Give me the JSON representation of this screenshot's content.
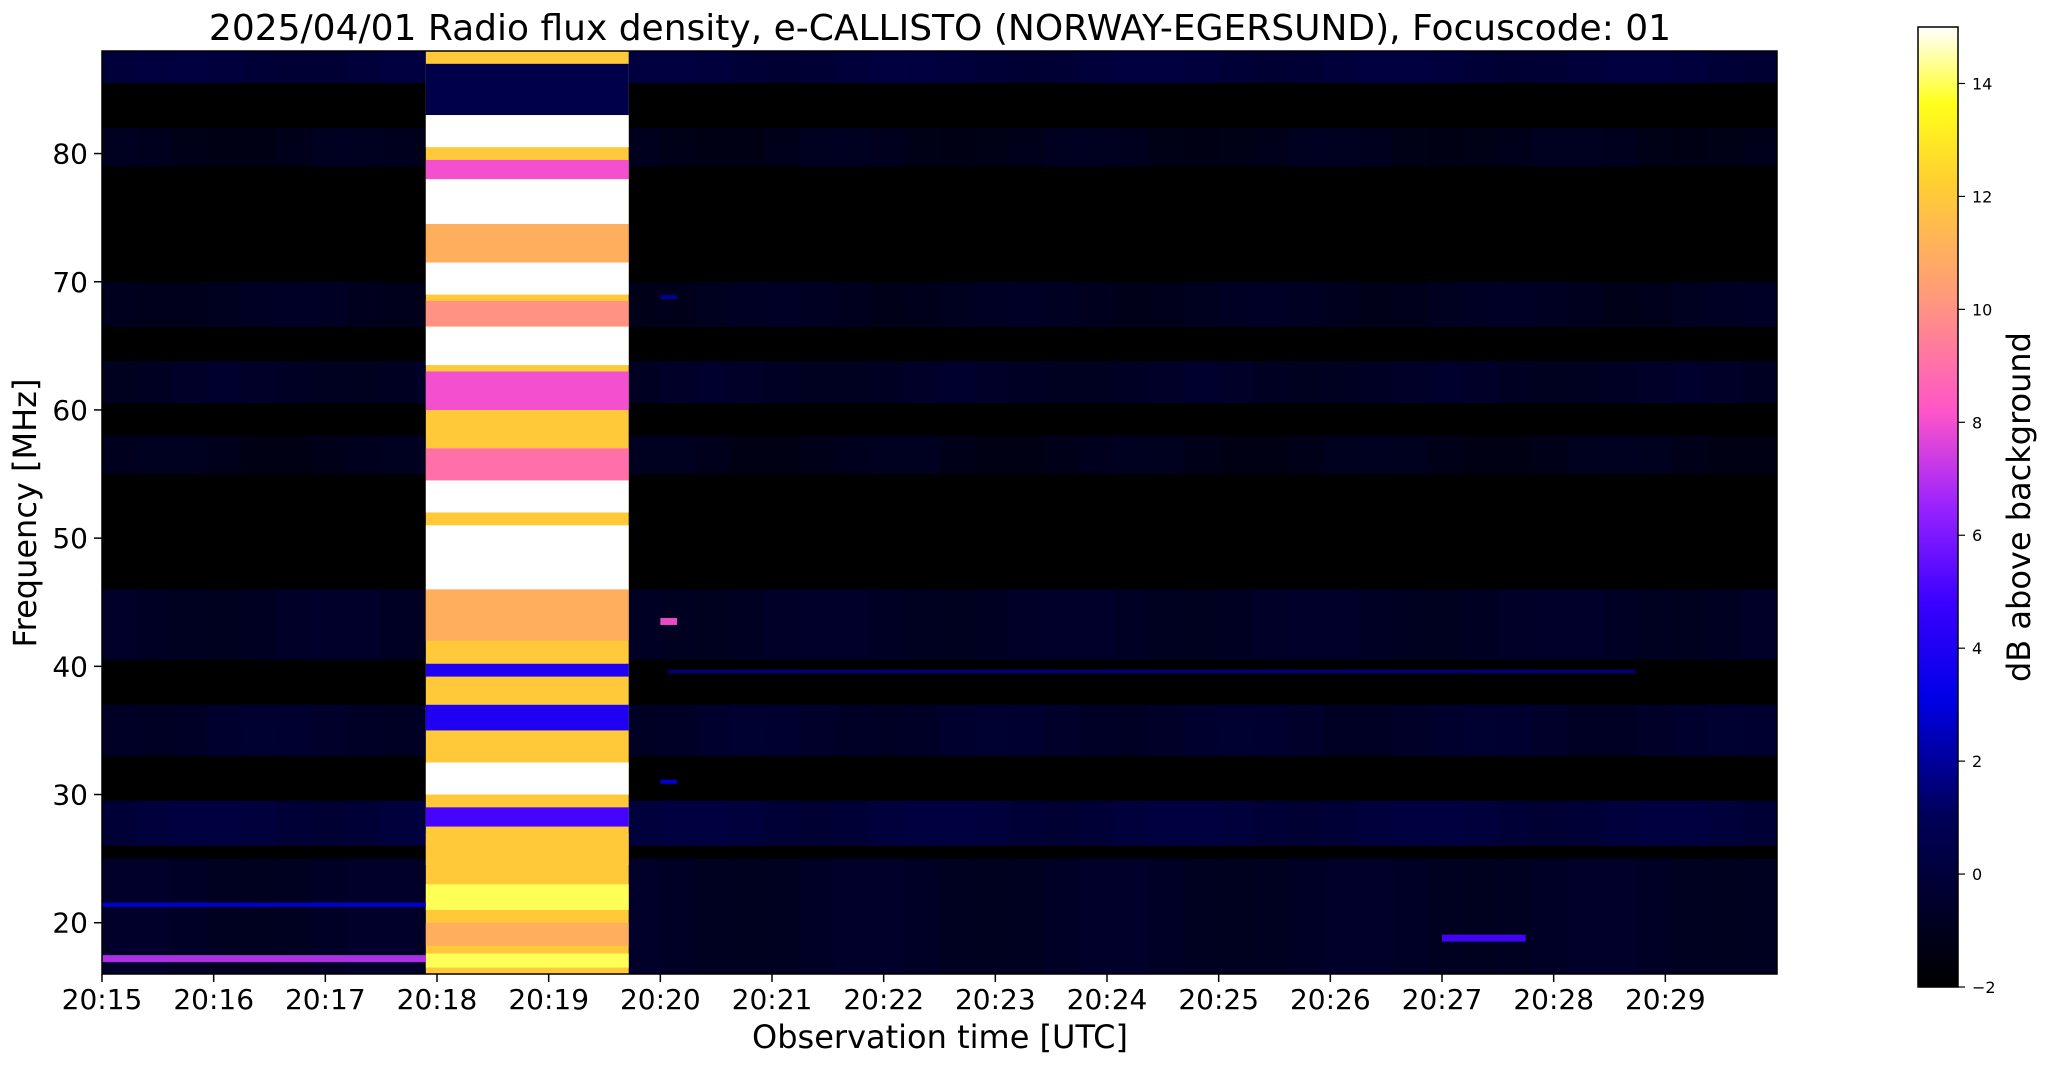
{
  "chart_data": {
    "type": "heatmap",
    "title": "2025/04/01  Radio flux density, e-CALLISTO (NORWAY-EGERSUND), Focuscode: 01",
    "xlabel": "Observation time [UTC]",
    "ylabel": "Frequency [MHz]",
    "colorbar_label": "dB above background",
    "colormap": "gnuplot2",
    "x_ticks": [
      "20:15",
      "20:16",
      "20:17",
      "20:18",
      "20:19",
      "20:20",
      "20:21",
      "20:22",
      "20:23",
      "20:24",
      "20:25",
      "20:26",
      "20:27",
      "20:28",
      "20:29"
    ],
    "xlim_minutes": [
      0,
      15.0
    ],
    "y_ticks": [
      20,
      30,
      40,
      50,
      60,
      70,
      80
    ],
    "ylim": [
      16,
      88
    ],
    "colorbar_ticks": [
      -2,
      0,
      2,
      4,
      6,
      8,
      10,
      12,
      14
    ],
    "colorbar_range": [
      -2,
      15
    ],
    "background_level_db": -1.6,
    "events": [
      {
        "label": "broadband burst",
        "t_start": "20:17:54",
        "t_end": "20:19:43",
        "f_min": 16,
        "f_max": 88,
        "level_db": 12
      },
      {
        "label": "narrowband emission",
        "t_start": "20:20:04",
        "t_end": "20:28:44",
        "freq": 39.6,
        "level_db": 1.5
      },
      {
        "label": "narrowband emission",
        "t_start": "20:20:00",
        "t_end": "20:20:09",
        "freq": 43.5,
        "level_db": 8
      },
      {
        "label": "narrowband emission",
        "t_start": "20:20:00",
        "t_end": "20:20:09",
        "freq": 31.0,
        "level_db": 3
      },
      {
        "label": "narrowband emission",
        "t_start": "20:20:00",
        "t_end": "20:20:09",
        "freq": 68.8,
        "level_db": 2
      },
      {
        "label": "low band interference",
        "t_start": "20:15:00",
        "t_end": "20:17:54",
        "freq": 17.2,
        "level_db": 7
      },
      {
        "label": "low band interference",
        "t_start": "20:15:00",
        "t_end": "20:17:54",
        "freq": 21.4,
        "level_db": 3
      },
      {
        "label": "low band interference",
        "t_start": "20:27:00",
        "t_end": "20:27:45",
        "freq": 18.8,
        "level_db": 5
      }
    ]
  }
}
